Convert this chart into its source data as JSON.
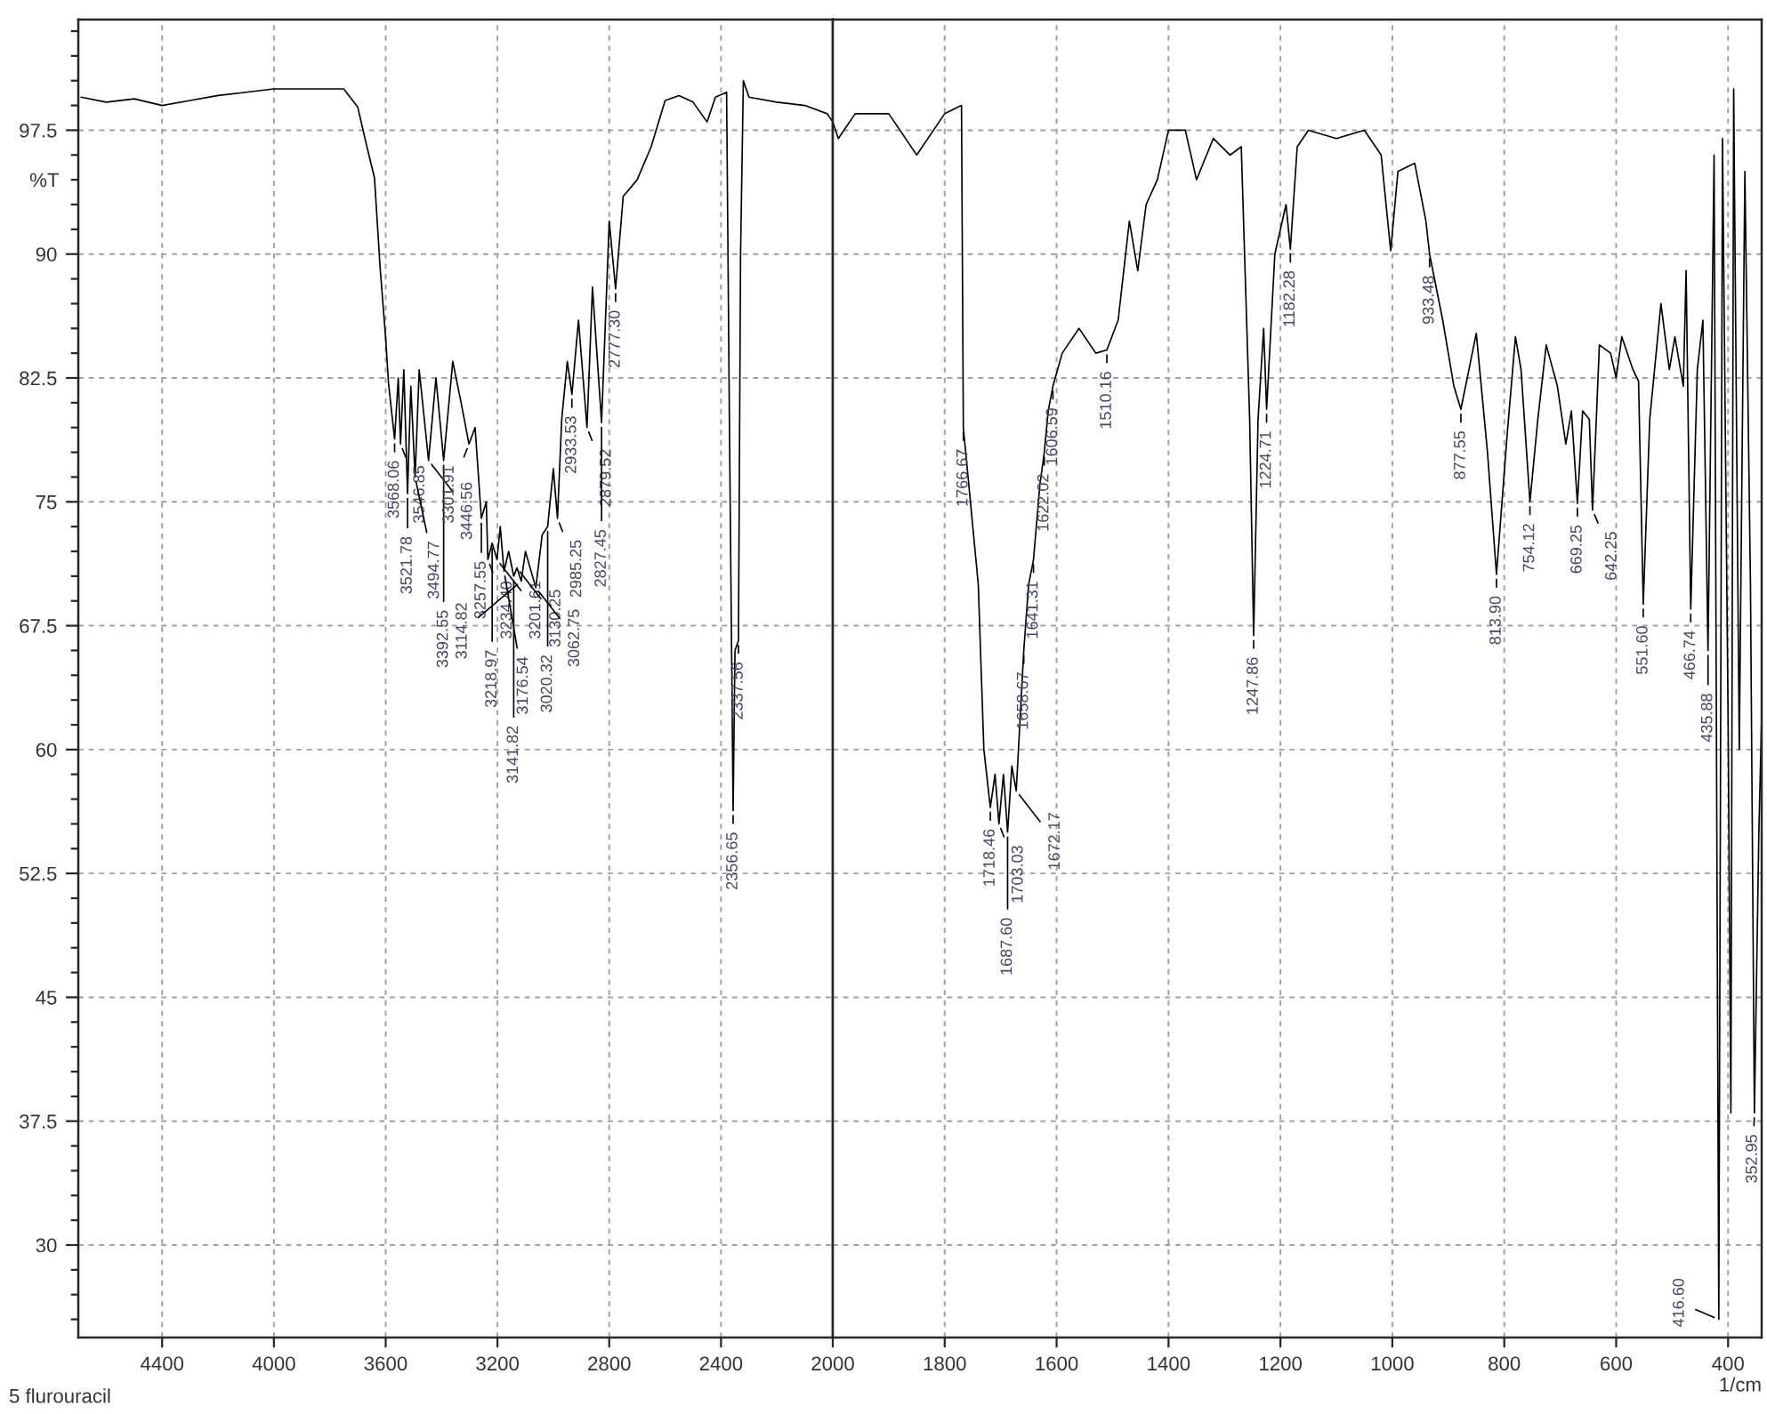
{
  "chart_data": [
    {
      "type": "line",
      "ylabel": "%T",
      "xlim": [
        4700,
        2000
      ],
      "ylim": [
        24.4,
        104.2
      ],
      "grid": true,
      "xticks": [
        4400,
        4000,
        3600,
        3200,
        2800,
        2400,
        2000
      ],
      "yticks": [
        {
          "value": 25.5,
          "label": null
        },
        {
          "value": 27,
          "label": null
        },
        {
          "value": 28.5,
          "label": null
        },
        30,
        {
          "value": 31.5,
          "label": null
        },
        {
          "value": 33,
          "label": null
        },
        {
          "value": 34.5,
          "label": null
        },
        {
          "value": 36,
          "label": null
        },
        37.5,
        {
          "value": 39,
          "label": null
        },
        {
          "value": 40.5,
          "label": null
        },
        {
          "value": 42,
          "label": null
        },
        {
          "value": 43.5,
          "label": null
        },
        45,
        {
          "value": 46.5,
          "label": null
        },
        {
          "value": 48,
          "label": null
        },
        {
          "value": 49.5,
          "label": null
        },
        {
          "value": 51,
          "label": null
        },
        52.5,
        {
          "value": 54,
          "label": null
        },
        {
          "value": 55.5,
          "label": null
        },
        {
          "value": 57,
          "label": null
        },
        {
          "value": 58.5,
          "label": null
        },
        60,
        {
          "value": 61.5,
          "label": null
        },
        {
          "value": 63,
          "label": null
        },
        {
          "value": 64.5,
          "label": null
        },
        {
          "value": 66,
          "label": null
        },
        67.5,
        {
          "value": 69,
          "label": null
        },
        {
          "value": 70.5,
          "label": null
        },
        {
          "value": 72,
          "label": null
        },
        {
          "value": 73.5,
          "label": null
        },
        75,
        {
          "value": 76.5,
          "label": null
        },
        {
          "value": 78,
          "label": null
        },
        {
          "value": 79.5,
          "label": null
        },
        {
          "value": 81,
          "label": null
        },
        82.5,
        {
          "value": 84,
          "label": null
        },
        {
          "value": 85.5,
          "label": null
        },
        {
          "value": 87,
          "label": null
        },
        {
          "value": 88.5,
          "label": null
        },
        90,
        {
          "value": 91.5,
          "label": null
        },
        {
          "value": 93,
          "label": null
        },
        {
          "value": 94.5,
          "label": null
        },
        {
          "value": 96,
          "label": null
        },
        97.5,
        {
          "value": 99,
          "label": null
        },
        {
          "value": 100.5,
          "label": null
        },
        {
          "value": 102,
          "label": null
        },
        {
          "value": 103.5,
          "label": null
        }
      ],
      "series": [
        {
          "color": "#000000",
          "x": [
            4690,
            4600,
            4500,
            4400,
            4300,
            4200,
            4100,
            4000,
            3750,
            3700,
            3670,
            3640,
            3620,
            3600,
            3590,
            3568.06,
            3555,
            3546.85,
            3535,
            3521.78,
            3510,
            3494.77,
            3480,
            3446.56,
            3420,
            3392.55,
            3360,
            3330,
            3301.91,
            3280,
            3257.55,
            3240,
            3234.4,
            3218.97,
            3201.61,
            3190,
            3176.54,
            3160,
            3141.82,
            3130.25,
            3114.82,
            3100,
            3062.75,
            3040,
            3020.32,
            3000,
            2985.25,
            2970,
            2950,
            2933.53,
            2910,
            2879.52,
            2860,
            2827.45,
            2800,
            2777.3,
            2750,
            2700,
            2650,
            2600,
            2550,
            2500,
            2450,
            2420,
            2380,
            2370,
            2356.65,
            2350,
            2337.56,
            2330,
            2320,
            2300,
            2200,
            2100,
            2020,
            2000
          ],
          "values": [
            99.5,
            99.2,
            99.4,
            99.0,
            99.3,
            99.6,
            99.8,
            100.0,
            100.0,
            98.9,
            96.7,
            94.6,
            89.2,
            84.9,
            82.2,
            78.8,
            82.5,
            78.5,
            83,
            75.5,
            82,
            76.5,
            83,
            77.5,
            82.5,
            77.5,
            83.5,
            81,
            78.5,
            79.5,
            74,
            75,
            71.5,
            72.5,
            71.5,
            73.5,
            70.8,
            72,
            70.5,
            71,
            70.2,
            72,
            69.8,
            73,
            73.5,
            77,
            74,
            80,
            83.5,
            81.5,
            86,
            79.5,
            88,
            79.8,
            92,
            87.9,
            93.5,
            94.5,
            96.5,
            99.3,
            99.6,
            99.2,
            98.0,
            99.5,
            99.8,
            80,
            56.3,
            66,
            66.6,
            90,
            100.5,
            99.5,
            99.2,
            99.0,
            98.5,
            98.0
          ]
        }
      ],
      "annotations": [
        "5 flurouracil",
        {
          "text": "3568.06",
          "x": 3568.06,
          "y": 78.8
        },
        {
          "text": "3546.85",
          "x": 3546.85,
          "y": 78.5
        },
        {
          "text": "3521.78",
          "x": 3521.78,
          "y": 75.5
        },
        {
          "text": "3494.77",
          "x": 3494.77,
          "y": 76.5
        },
        {
          "text": "3446.56",
          "x": 3446.56,
          "y": 77.5
        },
        {
          "text": "3392.55",
          "x": 3392.55,
          "y": 77.5
        },
        {
          "text": "3301.91",
          "x": 3301.91,
          "y": 78.5
        },
        {
          "text": "3257.55",
          "x": 3257.55,
          "y": 74
        },
        {
          "text": "3234.40",
          "x": 3234.4,
          "y": 71.5
        },
        {
          "text": "3218.97",
          "x": 3218.97,
          "y": 72.5
        },
        {
          "text": "3201.61",
          "x": 3201.61,
          "y": 71.5
        },
        {
          "text": "3176.54",
          "x": 3176.54,
          "y": 70.8
        },
        {
          "text": "3141.82",
          "x": 3141.82,
          "y": 70.5
        },
        {
          "text": "3130.25",
          "x": 3130.25,
          "y": 71
        },
        {
          "text": "3114.82",
          "x": 3114.82,
          "y": 70.2
        },
        {
          "text": "3062.75",
          "x": 3062.75,
          "y": 69.8
        },
        {
          "text": "3020.32",
          "x": 3020.32,
          "y": 73.5
        },
        {
          "text": "2985.25",
          "x": 2985.25,
          "y": 74
        },
        {
          "text": "2933.53",
          "x": 2933.53,
          "y": 81.5
        },
        {
          "text": "2879.52",
          "x": 2879.52,
          "y": 79.5
        },
        {
          "text": "2827.45",
          "x": 2827.45,
          "y": 79.8
        },
        {
          "text": "2777.30",
          "x": 2777.3,
          "y": 87.9
        },
        {
          "text": "2356.65",
          "x": 2356.65,
          "y": 56.3
        },
        {
          "text": "2337.56",
          "x": 2337.56,
          "y": 66.6
        }
      ]
    },
    {
      "type": "line",
      "xlabel": "1/cm",
      "xlim": [
        2000,
        340
      ],
      "ylim": [
        24.4,
        104.2
      ],
      "grid": true,
      "tick_labels": "x",
      "xticks": [
        1800,
        1600,
        1400,
        1200,
        1000,
        800,
        600,
        400
      ],
      "yticks": [
        30,
        37.5,
        45,
        52.5,
        60,
        67.5,
        75,
        82.5,
        90,
        97.5
      ],
      "series": [
        {
          "color": "#000000",
          "x": [
            2000,
            1990,
            1960,
            1900,
            1850,
            1800,
            1770,
            1766.67,
            1740,
            1730,
            1718.46,
            1710,
            1703.03,
            1695,
            1687.6,
            1680,
            1672.17,
            1665,
            1658.67,
            1650,
            1641.31,
            1630,
            1622.02,
            1615,
            1606.59,
            1590,
            1560,
            1530,
            1510.16,
            1490,
            1470,
            1455,
            1440,
            1420,
            1400,
            1370,
            1350,
            1320,
            1290,
            1270,
            1255,
            1247.86,
            1240,
            1230,
            1224.71,
            1210,
            1190,
            1182.28,
            1170,
            1150,
            1100,
            1050,
            1020,
            1003,
            990,
            960,
            940,
            933.48,
            910,
            890,
            877.55,
            850,
            830,
            813.9,
            795,
            780,
            770,
            754.12,
            740,
            725,
            705,
            690,
            680,
            669.25,
            660,
            648,
            642.25,
            630,
            610,
            600,
            590,
            570,
            560,
            551.6,
            540,
            520,
            505,
            495,
            480,
            475,
            466.74,
            455,
            445,
            435.88,
            425,
            416.6,
            410,
            400,
            395,
            390,
            380,
            370,
            360,
            352.95,
            345,
            340
          ],
          "values": [
            98.0,
            97.0,
            98.5,
            98.5,
            96.0,
            98.5,
            99,
            79.5,
            70,
            60,
            56.5,
            58.5,
            55.5,
            58.5,
            55.0,
            59,
            57.5,
            62,
            66,
            70,
            71.5,
            76,
            78,
            80.5,
            82,
            84,
            85.5,
            84,
            84.2,
            86,
            92,
            89,
            93,
            94.5,
            97.5,
            97.5,
            94.5,
            97,
            96,
            96.5,
            80,
            66.9,
            80,
            85.5,
            80.6,
            90,
            93,
            90.3,
            96.5,
            97.5,
            97,
            97.5,
            96,
            90.2,
            95,
            95.5,
            92,
            90,
            86,
            82,
            80.6,
            85.2,
            78,
            70.6,
            79,
            85.0,
            83,
            75.0,
            80,
            84.5,
            82,
            78.5,
            80.5,
            74.9,
            80.5,
            80,
            74.5,
            84.5,
            84,
            82.5,
            85,
            83,
            82.3,
            68.8,
            80,
            87,
            83,
            85,
            82,
            89,
            68.5,
            83,
            86,
            66,
            96,
            25.5,
            97,
            62,
            38,
            100,
            60,
            95,
            70,
            38,
            55,
            62
          ]
        }
      ],
      "annotations": [
        {
          "text": "1766.67",
          "x": 1766.67,
          "y": 79.5
        },
        {
          "text": "1718.46",
          "x": 1718.46,
          "y": 56.5
        },
        {
          "text": "1703.03",
          "x": 1703.03,
          "y": 55.5
        },
        {
          "text": "1687.60",
          "x": 1687.6,
          "y": 55.0
        },
        {
          "text": "1672.17",
          "x": 1672.17,
          "y": 57.5
        },
        {
          "text": "1658.67",
          "x": 1658.67,
          "y": 66
        },
        {
          "text": "1641.31",
          "x": 1641.31,
          "y": 71.5
        },
        {
          "text": "1622.02",
          "x": 1622.02,
          "y": 78
        },
        {
          "text": "1606.59",
          "x": 1606.59,
          "y": 82
        },
        {
          "text": "1510.16",
          "x": 1510.16,
          "y": 84.2
        },
        {
          "text": "1247.86",
          "x": 1247.86,
          "y": 66.9
        },
        {
          "text": "1224.71",
          "x": 1224.71,
          "y": 80.6
        },
        {
          "text": "1182.28",
          "x": 1182.28,
          "y": 90.3
        },
        {
          "text": "933.48",
          "x": 933.48,
          "y": 90
        },
        {
          "text": "877.55",
          "x": 877.55,
          "y": 80.6
        },
        {
          "text": "813.90",
          "x": 813.9,
          "y": 70.6
        },
        {
          "text": "754.12",
          "x": 754.12,
          "y": 75.0
        },
        {
          "text": "669.25",
          "x": 669.25,
          "y": 74.9
        },
        {
          "text": "642.25",
          "x": 642.25,
          "y": 74.5
        },
        {
          "text": "551.60",
          "x": 551.6,
          "y": 68.8
        },
        {
          "text": "466.74",
          "x": 466.74,
          "y": 68.5
        },
        {
          "text": "435.88",
          "x": 435.88,
          "y": 66
        },
        {
          "text": "416.60",
          "x": 416.6,
          "y": 25.5
        },
        {
          "text": "352.95",
          "x": 352.95,
          "y": 38
        }
      ]
    }
  ]
}
